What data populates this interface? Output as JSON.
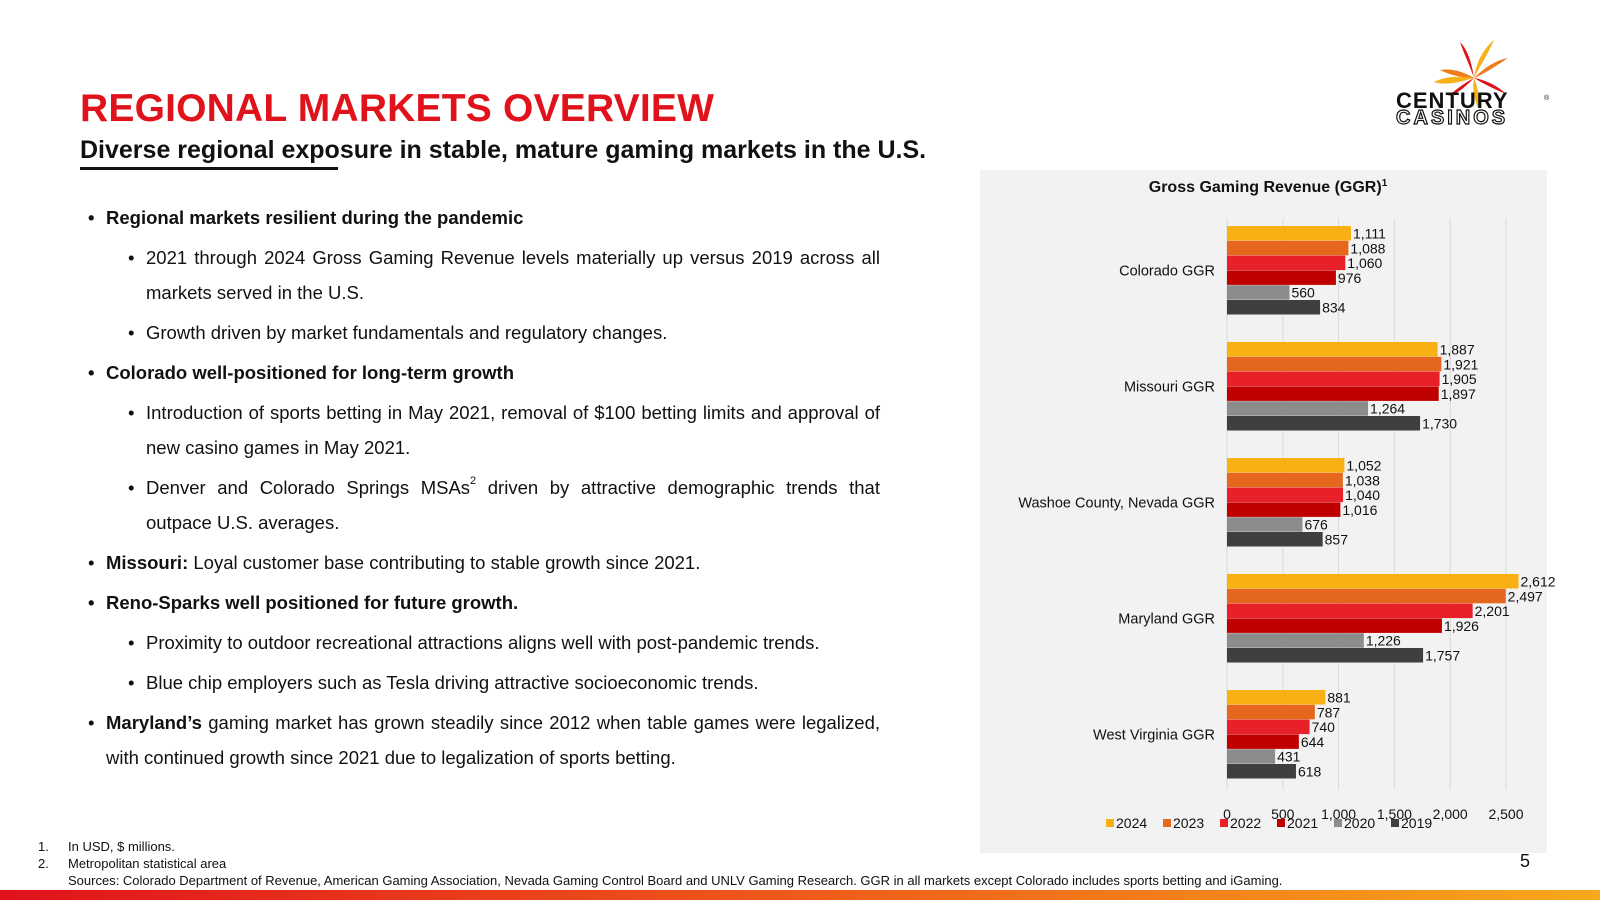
{
  "page": {
    "title": "REGIONAL MARKETS OVERVIEW",
    "subtitle": "Diverse regional exposure in stable, mature gaming markets in the U.S.",
    "page_number": "5"
  },
  "logo": {
    "line1": "CENTURY",
    "line2": "CASINOS",
    "mark": "®",
    "colors": [
      "#e0121b",
      "#ef7d1a",
      "#f7b21b"
    ]
  },
  "bullets": {
    "b1": "Regional markets resilient during the pandemic",
    "b1a": "2021 through 2024 Gross Gaming Revenue levels materially up versus 2019 across all markets served in the U.S.",
    "b1b": "Growth driven by market fundamentals and regulatory changes.",
    "b2": "Colorado well-positioned for long-term growth",
    "b2a": "Introduction of sports betting in May 2021, removal of $100 betting limits and approval of new casino games in May 2021.",
    "b2b_pre": "Denver and Colorado Springs MSAs",
    "b2b_sup": "2",
    "b2b_post": " driven by attractive demographic trends that outpace U.S. averages.",
    "b3_bold": "Missouri:",
    "b3_rest": " Loyal customer base contributing to stable growth since 2021.",
    "b4": "Reno-Sparks well positioned for future growth.",
    "b4a": "Proximity to outdoor recreational attractions aligns well with post-pandemic trends.",
    "b4b": "Blue chip employers such as Tesla driving attractive socioeconomic trends.",
    "b5_bold": "Maryland’s",
    "b5_rest": " gaming market has grown steadily since 2012 when table games were legalized, with continued growth since 2021 due to legalization of sports betting."
  },
  "chart_data": {
    "type": "bar",
    "orientation": "horizontal",
    "title": "Gross Gaming Revenue (GGR)",
    "title_sup": "1",
    "categories": [
      "Colorado GGR",
      "Missouri GGR",
      "Washoe County, Nevada GGR",
      "Maryland GGR",
      "West Virginia GGR"
    ],
    "series": [
      {
        "name": "2024",
        "color": "#f9b013",
        "values": [
          1111,
          1887,
          1052,
          2612,
          881
        ]
      },
      {
        "name": "2023",
        "color": "#e4671d",
        "values": [
          1088,
          1921,
          1038,
          2497,
          787
        ]
      },
      {
        "name": "2022",
        "color": "#e8202a",
        "values": [
          1060,
          1905,
          1040,
          2201,
          740
        ]
      },
      {
        "name": "2021",
        "color": "#c00000",
        "values": [
          976,
          1897,
          1016,
          1926,
          644
        ]
      },
      {
        "name": "2020",
        "color": "#8c8c8c",
        "values": [
          560,
          1264,
          676,
          1226,
          431
        ]
      },
      {
        "name": "2019",
        "color": "#3f3f3f",
        "values": [
          834,
          1730,
          857,
          1757,
          618
        ]
      }
    ],
    "xlim": [
      0,
      2500
    ],
    "xticks": [
      0,
      500,
      1000,
      1500,
      2000,
      2500
    ],
    "xtick_labels": [
      "0",
      "500",
      "1,000",
      "1,500",
      "2,000",
      "2,500"
    ],
    "grid": "vertical",
    "legend": "bottom"
  },
  "footnotes": {
    "f1_num": "1.",
    "f1": "In USD, $ millions.",
    "f2_num": "2.",
    "f2": "Metropolitan statistical area",
    "sources": "Sources: Colorado Department of Revenue, American Gaming Association, Nevada Gaming Control Board and UNLV Gaming Research. GGR in all markets except Colorado includes sports betting and iGaming."
  }
}
